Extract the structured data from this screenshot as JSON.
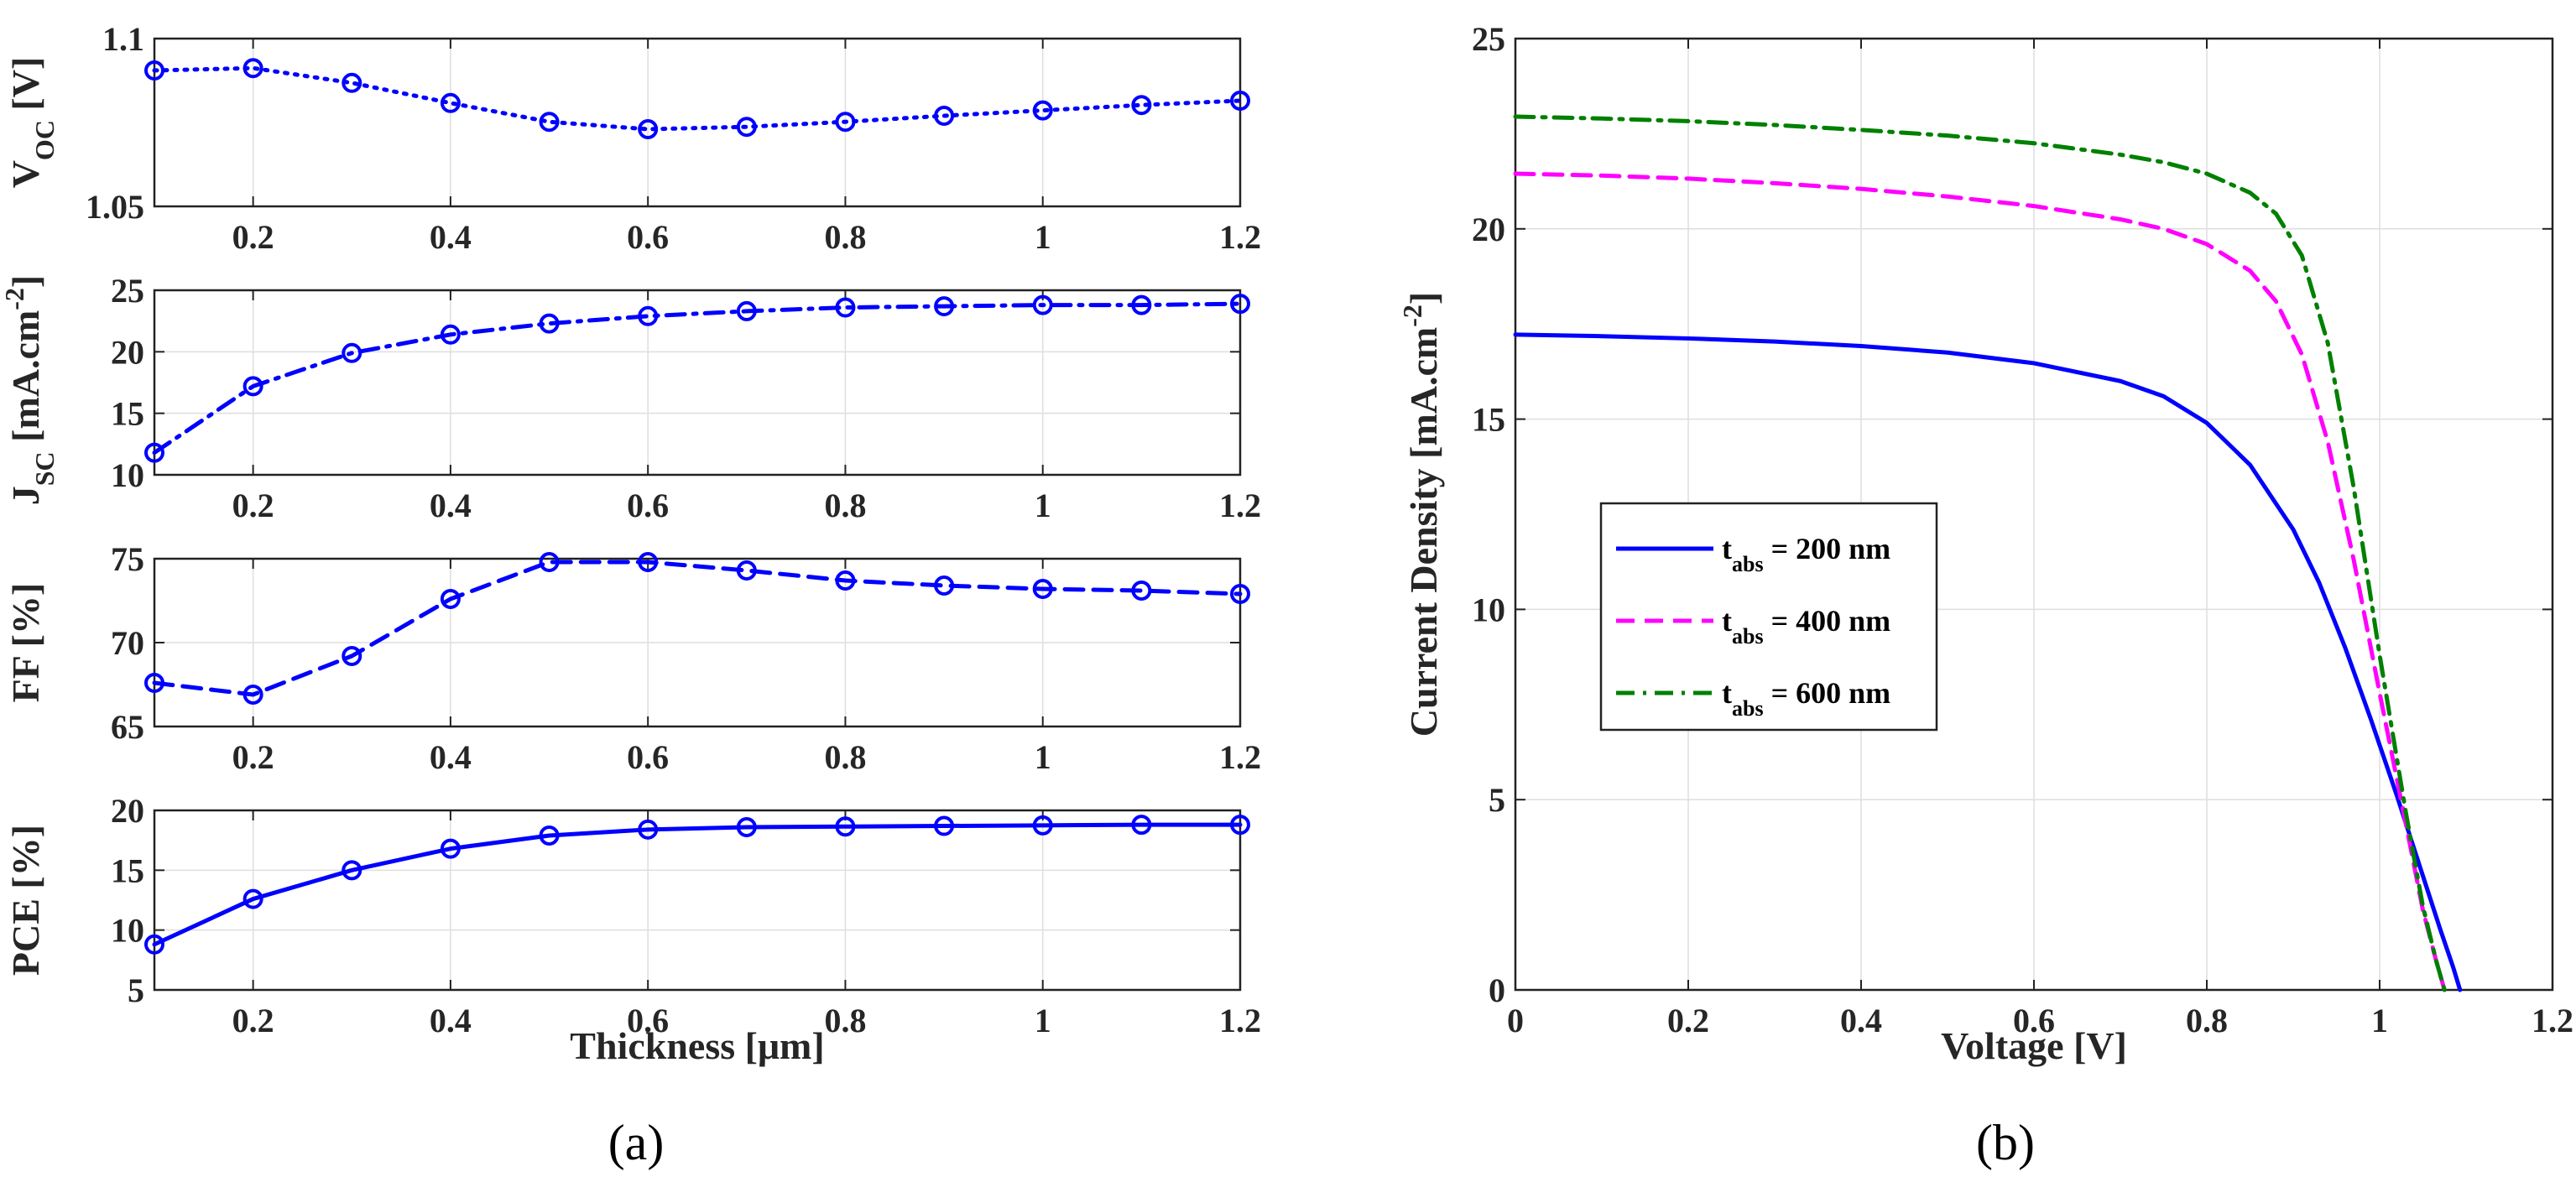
{
  "chart_data": [
    {
      "id": "voc",
      "type": "line",
      "panel": "a",
      "ylabel_main": "V",
      "ylabel_sub": "OC",
      "ylabel_unit": "[V]",
      "x": [
        0.1,
        0.2,
        0.3,
        0.4,
        0.5,
        0.6,
        0.7,
        0.8,
        0.9,
        1.0,
        1.1,
        1.2
      ],
      "values": [
        1.0905,
        1.0912,
        1.0868,
        1.0808,
        1.0752,
        1.073,
        1.0737,
        1.0752,
        1.077,
        1.0786,
        1.0802,
        1.0815
      ],
      "xlim": [
        0.1,
        1.2
      ],
      "ylim": [
        1.05,
        1.1
      ],
      "xticks": [
        "0.2",
        "0.4",
        "0.6",
        "0.8",
        "1",
        "1.2"
      ],
      "yticks": [
        "1.05",
        "1.1"
      ],
      "color": "#0000ff",
      "linestyle": "dotted",
      "marker": "circle"
    },
    {
      "id": "jsc",
      "type": "line",
      "panel": "a",
      "ylabel_main": "J",
      "ylabel_sub": "SC",
      "ylabel_unit": "[mA.cm",
      "ylabel_sup": "-2",
      "ylabel_close": "]",
      "x": [
        0.1,
        0.2,
        0.3,
        0.4,
        0.5,
        0.6,
        0.7,
        0.8,
        0.9,
        1.0,
        1.1,
        1.2
      ],
      "values": [
        11.8,
        17.2,
        19.9,
        21.4,
        22.3,
        22.9,
        23.3,
        23.6,
        23.7,
        23.8,
        23.8,
        23.9
      ],
      "xlim": [
        0.1,
        1.2
      ],
      "ylim": [
        10,
        25
      ],
      "xticks": [
        "0.2",
        "0.4",
        "0.6",
        "0.8",
        "1",
        "1.2"
      ],
      "yticks": [
        "10",
        "15",
        "20",
        "25"
      ],
      "color": "#0000ff",
      "linestyle": "dashdot",
      "marker": "circle"
    },
    {
      "id": "ff",
      "type": "line",
      "panel": "a",
      "ylabel_main": "FF [%]",
      "x": [
        0.1,
        0.2,
        0.3,
        0.4,
        0.5,
        0.6,
        0.7,
        0.8,
        0.9,
        1.0,
        1.1,
        1.2
      ],
      "values": [
        67.6,
        66.9,
        69.2,
        72.6,
        74.8,
        74.8,
        74.3,
        73.7,
        73.4,
        73.2,
        73.1,
        72.9
      ],
      "xlim": [
        0.1,
        1.2
      ],
      "ylim": [
        65,
        75
      ],
      "xticks": [
        "0.2",
        "0.4",
        "0.6",
        "0.8",
        "1",
        "1.2"
      ],
      "yticks": [
        "65",
        "70",
        "75"
      ],
      "color": "#0000ff",
      "linestyle": "dashed",
      "marker": "circle"
    },
    {
      "id": "pce",
      "type": "line",
      "panel": "a",
      "ylabel_main": "PCE [%]",
      "xlabel": "Thickness [μm]",
      "x": [
        0.1,
        0.2,
        0.3,
        0.4,
        0.5,
        0.6,
        0.7,
        0.8,
        0.9,
        1.0,
        1.1,
        1.2
      ],
      "values": [
        8.8,
        12.6,
        15.0,
        16.8,
        17.9,
        18.4,
        18.6,
        18.65,
        18.7,
        18.75,
        18.8,
        18.8
      ],
      "xlim": [
        0.1,
        1.2
      ],
      "ylim": [
        5,
        20
      ],
      "xticks": [
        "0.2",
        "0.4",
        "0.6",
        "0.8",
        "1",
        "1.2"
      ],
      "yticks": [
        "5",
        "10",
        "15",
        "20"
      ],
      "color": "#0000ff",
      "linestyle": "solid",
      "marker": "circle"
    },
    {
      "id": "jv",
      "type": "line",
      "panel": "b",
      "xlabel": "Voltage [V]",
      "ylabel": "Current Density [mA.cm",
      "ylabel_sup": "-2",
      "ylabel_close": "]",
      "xlim": [
        0,
        1.2
      ],
      "ylim": [
        0,
        25
      ],
      "xticks": [
        "0",
        "0.2",
        "0.4",
        "0.6",
        "0.8",
        "1",
        "1.2"
      ],
      "yticks": [
        "0",
        "5",
        "10",
        "15",
        "20",
        "25"
      ],
      "legend_position": "center-left",
      "series": [
        {
          "name": "200 nm",
          "legend_main": "t",
          "legend_sub": "abs",
          "legend_rest": " = 200 nm",
          "color": "#0000ff",
          "linestyle": "solid",
          "x": [
            0,
            0.1,
            0.2,
            0.3,
            0.4,
            0.5,
            0.6,
            0.7,
            0.75,
            0.8,
            0.85,
            0.9,
            0.93,
            0.96,
            0.99,
            1.02,
            1.05,
            1.07,
            1.085,
            1.093
          ],
          "values": [
            17.22,
            17.18,
            17.12,
            17.04,
            16.92,
            16.75,
            16.47,
            16.0,
            15.6,
            14.9,
            13.8,
            12.1,
            10.7,
            9.0,
            7.1,
            5.1,
            3.0,
            1.6,
            0.6,
            0
          ]
        },
        {
          "name": "400 nm",
          "legend_main": "t",
          "legend_sub": "abs",
          "legend_rest": " = 400 nm",
          "color": "#ff00ff",
          "linestyle": "dashed",
          "x": [
            0,
            0.1,
            0.2,
            0.3,
            0.4,
            0.5,
            0.6,
            0.7,
            0.75,
            0.8,
            0.85,
            0.88,
            0.91,
            0.94,
            0.97,
            1.0,
            1.03,
            1.05,
            1.065,
            1.075
          ],
          "values": [
            21.45,
            21.4,
            21.32,
            21.2,
            21.05,
            20.85,
            20.6,
            20.25,
            20.0,
            19.6,
            18.9,
            18.1,
            16.7,
            14.4,
            11.3,
            7.8,
            4.4,
            2.1,
            0.8,
            0
          ]
        },
        {
          "name": "600 nm",
          "legend_main": "t",
          "legend_sub": "abs",
          "legend_rest": " = 600 nm",
          "color": "#008000",
          "linestyle": "dashdot",
          "x": [
            0,
            0.1,
            0.2,
            0.3,
            0.4,
            0.5,
            0.6,
            0.7,
            0.75,
            0.8,
            0.85,
            0.88,
            0.91,
            0.94,
            0.97,
            1.0,
            1.03,
            1.05,
            1.065,
            1.075
          ],
          "values": [
            22.95,
            22.9,
            22.83,
            22.73,
            22.6,
            22.45,
            22.25,
            21.95,
            21.75,
            21.45,
            20.95,
            20.4,
            19.3,
            17.0,
            13.2,
            8.8,
            4.7,
            2.2,
            0.8,
            0
          ]
        }
      ]
    }
  ],
  "captions": {
    "a": "(a)",
    "b": "(b)"
  }
}
